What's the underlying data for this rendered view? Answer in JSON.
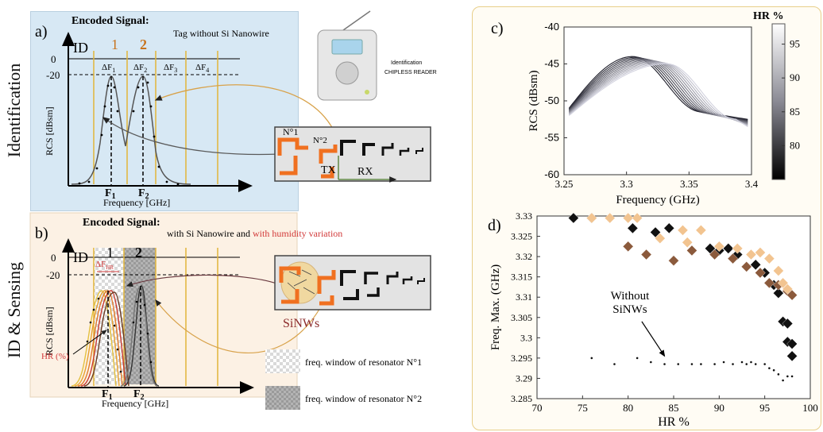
{
  "side_labels": {
    "top": "Identification",
    "bottom": "ID & Sensing"
  },
  "panel_a": {
    "letter": "a)",
    "encoded": "Encoded Signal:",
    "tag": "Tag without Si Nanowire",
    "id": "ID",
    "res1": "1",
    "res2": "2",
    "df1": "ΔF",
    "df1s": "1",
    "df2": "ΔF",
    "df2s": "2",
    "df3": "ΔF",
    "df3s": "3",
    "df4": "ΔF",
    "df4s": "4",
    "y0": "0",
    "y20": "-20",
    "ylabel": "RCS [dBsm]",
    "f1": "F",
    "f1s": "1",
    "f2": "F",
    "f2s": "2",
    "xlabel": "Frequency [GHz]"
  },
  "reader": {
    "line1": "Identification",
    "line2": "CHIPLESS READER"
  },
  "tag_box": {
    "n1": "N°1",
    "n2": "N°2",
    "tx": "TX",
    "rx": "RX"
  },
  "panel_b": {
    "letter": "b)",
    "encoded": "Encoded Signal:",
    "with": "with Si Nanowire and ",
    "humidity": "with humidity variation",
    "id": "ID",
    "res1": "1",
    "res2": "2",
    "dfhr": "ΔF",
    "dfhrs": "HR",
    "y0": "0",
    "y20": "-20",
    "ylabel": "RCS [dBsm]",
    "hr": "HR (%)",
    "f1": "F",
    "f1s": "1",
    "f2": "F",
    "f2s": "2",
    "xlabel": "Frequency [GHz]"
  },
  "sinws_label": "SiNWs",
  "legend": {
    "item1": "freq. window of resonator N°1",
    "item2": "freq. window of resonator N°2"
  },
  "chart_data": [
    {
      "panel": "c)",
      "type": "line",
      "xlabel": "Frequency (GHz)",
      "ylabel": "RCS (dBsm)",
      "xlim": [
        3.25,
        3.4
      ],
      "ylim": [
        -60,
        -40
      ],
      "xticks": [
        "3.25",
        "3.3",
        "3.35",
        "3.4"
      ],
      "yticks": [
        "-40",
        "-45",
        "-50",
        "-55",
        "-60"
      ],
      "colorbar": {
        "title": "HR %",
        "ticks": [
          "95",
          "90",
          "85",
          "80"
        ],
        "range": [
          75,
          98
        ]
      },
      "series_hr": [
        76,
        78,
        80,
        82,
        84,
        86,
        88,
        90,
        92,
        94,
        96,
        98
      ],
      "curve_model": {
        "peak_rcs": -44,
        "low_start": -51,
        "plateau": -51.5,
        "tail": -52.5
      }
    },
    {
      "panel": "d)",
      "type": "scatter",
      "xlabel": "HR %",
      "ylabel": "Freq. Max. (GHz)",
      "xlim": [
        70,
        100
      ],
      "ylim": [
        3.285,
        3.33
      ],
      "xticks": [
        "70",
        "75",
        "80",
        "85",
        "90",
        "95",
        "100"
      ],
      "yticks": [
        "3.33",
        "3.325",
        "3.32",
        "3.315",
        "3.31",
        "3.305",
        "3.3",
        "3.295",
        "3.29",
        "3.285"
      ],
      "annotation": {
        "line1": "Without",
        "line2": "SiNWs"
      },
      "series": [
        {
          "color": "#111111",
          "points": [
            [
              74,
              3.3295
            ],
            [
              76,
              3.3295
            ],
            [
              80.5,
              3.327
            ],
            [
              83,
              3.326
            ],
            [
              84.5,
              3.327
            ],
            [
              89,
              3.322
            ],
            [
              90,
              3.3215
            ],
            [
              91,
              3.322
            ],
            [
              92,
              3.3205
            ],
            [
              94,
              3.318
            ],
            [
              95,
              3.316
            ],
            [
              96,
              3.313
            ],
            [
              96.5,
              3.311
            ],
            [
              97,
              3.304
            ],
            [
              97.5,
              3.3035
            ],
            [
              97.5,
              3.299
            ],
            [
              98,
              3.2985
            ],
            [
              98,
              3.2955
            ]
          ]
        },
        {
          "color": "#8b5a3c",
          "points": [
            [
              80,
              3.3225
            ],
            [
              82,
              3.3205
            ],
            [
              85,
              3.319
            ],
            [
              87,
              3.3215
            ],
            [
              89.5,
              3.3205
            ],
            [
              91.5,
              3.3195
            ],
            [
              93,
              3.3175
            ],
            [
              94.5,
              3.316
            ],
            [
              95.5,
              3.3135
            ],
            [
              96.5,
              3.313
            ],
            [
              97.5,
              3.3115
            ],
            [
              98,
              3.3105
            ]
          ]
        },
        {
          "color": "#f2c490",
          "points": [
            [
              76,
              3.3295
            ],
            [
              78,
              3.3295
            ],
            [
              80,
              3.3295
            ],
            [
              81,
              3.3295
            ],
            [
              83.5,
              3.3245
            ],
            [
              86,
              3.3265
            ],
            [
              86.5,
              3.3235
            ],
            [
              88,
              3.3265
            ],
            [
              90,
              3.3225
            ],
            [
              92,
              3.322
            ],
            [
              93.5,
              3.3205
            ],
            [
              94.5,
              3.321
            ],
            [
              95.5,
              3.3195
            ],
            [
              96.5,
              3.3165
            ],
            [
              97,
              3.3135
            ],
            [
              97.5,
              3.312
            ]
          ]
        },
        {
          "color": "#111111",
          "small": true,
          "points": [
            [
              76,
              3.295
            ],
            [
              78.5,
              3.2935
            ],
            [
              81,
              3.295
            ],
            [
              82.5,
              3.294
            ],
            [
              84,
              3.2935
            ],
            [
              85.5,
              3.2935
            ],
            [
              87,
              3.2935
            ],
            [
              88,
              3.2935
            ],
            [
              89.5,
              3.2935
            ],
            [
              90.5,
              3.294
            ],
            [
              91.5,
              3.2935
            ],
            [
              92.5,
              3.294
            ],
            [
              93,
              3.2935
            ],
            [
              93.5,
              3.294
            ],
            [
              94,
              3.2935
            ],
            [
              95,
              3.2935
            ],
            [
              95.5,
              3.2925
            ],
            [
              96,
              3.292
            ],
            [
              96.5,
              3.291
            ],
            [
              97,
              3.2895
            ],
            [
              97.5,
              3.2905
            ],
            [
              98,
              3.2905
            ]
          ]
        }
      ]
    }
  ]
}
